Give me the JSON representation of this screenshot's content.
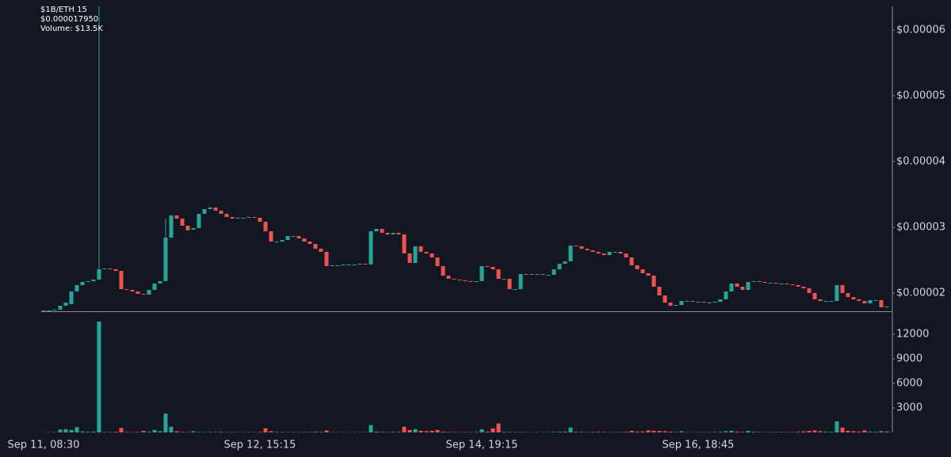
{
  "header": {
    "symbol": "$1B/ETH 15",
    "price": "$0.000017950",
    "volume": "Volume: $13.5K"
  },
  "chart_data": {
    "type": "candlestick",
    "up_color": "#26a69a",
    "down_color": "#ef5350",
    "categories": [
      "Sep 11, 08:30",
      null,
      null,
      null,
      null,
      null,
      null,
      null,
      null,
      null,
      null,
      null,
      null,
      null,
      null,
      null,
      null,
      null,
      null,
      null,
      null,
      null,
      null,
      null,
      null,
      null,
      null,
      null,
      null,
      null,
      null,
      null,
      null,
      null,
      null,
      null,
      null,
      null,
      null,
      "Sep 12, 15:15",
      null,
      null,
      null,
      null,
      null,
      null,
      null,
      null,
      null,
      null,
      null,
      null,
      null,
      null,
      null,
      null,
      null,
      null,
      null,
      null,
      null,
      null,
      null,
      null,
      null,
      null,
      null,
      null,
      null,
      null,
      null,
      null,
      null,
      null,
      null,
      null,
      null,
      null,
      null,
      "Sep 14, 19:15",
      null,
      null,
      null,
      null,
      null,
      null,
      null,
      null,
      null,
      null,
      null,
      null,
      null,
      null,
      null,
      null,
      null,
      null,
      null,
      null,
      null,
      null,
      null,
      null,
      null,
      null,
      null,
      null,
      null,
      null,
      null,
      null,
      null,
      null,
      null,
      null,
      null,
      null,
      "Sep 16, 18:45",
      null,
      null,
      null,
      null,
      null,
      null,
      null,
      null,
      null,
      null,
      null,
      null,
      null,
      null,
      null,
      null,
      null,
      null,
      null,
      null,
      null,
      null,
      null,
      null,
      null,
      null,
      null,
      null,
      null,
      null,
      null,
      null,
      null,
      null
    ],
    "open": [
      1.735e-05,
      1.735e-05,
      1.735e-05,
      1.747e-05,
      1.807e-05,
      1.831e-05,
      2.024e-05,
      2.12e-05,
      2.169e-05,
      2.181e-05,
      2.205e-05,
      2.361e-05,
      2.373e-05,
      2.361e-05,
      2.337e-05,
      2.06e-05,
      2.048e-05,
      2.024e-05,
      1.988e-05,
      1.976e-05,
      2.048e-05,
      2.145e-05,
      2.181e-05,
      2.843e-05,
      3.181e-05,
      3.133e-05,
      3.024e-05,
      2.964e-05,
      2.988e-05,
      3.205e-05,
      3.277e-05,
      3.301e-05,
      3.253e-05,
      3.205e-05,
      3.157e-05,
      3.133e-05,
      3.145e-05,
      3.145e-05,
      3.157e-05,
      3.145e-05,
      3.084e-05,
      2.94e-05,
      2.783e-05,
      2.783e-05,
      2.807e-05,
      2.867e-05,
      2.867e-05,
      2.831e-05,
      2.783e-05,
      2.747e-05,
      2.675e-05,
      2.627e-05,
      2.41e-05,
      2.422e-05,
      2.422e-05,
      2.434e-05,
      2.434e-05,
      2.434e-05,
      2.446e-05,
      2.434e-05,
      2.94e-05,
      2.976e-05,
      2.916e-05,
      2.892e-05,
      2.916e-05,
      2.892e-05,
      2.602e-05,
      2.458e-05,
      2.711e-05,
      2.627e-05,
      2.602e-05,
      2.542e-05,
      2.41e-05,
      2.265e-05,
      2.217e-05,
      2.205e-05,
      2.193e-05,
      2.181e-05,
      2.169e-05,
      2.181e-05,
      2.41e-05,
      2.398e-05,
      2.361e-05,
      2.217e-05,
      2.217e-05,
      2.06e-05,
      2.06e-05,
      2.289e-05,
      2.289e-05,
      2.277e-05,
      2.289e-05,
      2.277e-05,
      2.277e-05,
      2.361e-05,
      2.446e-05,
      2.482e-05,
      2.723e-05,
      2.711e-05,
      2.675e-05,
      2.651e-05,
      2.627e-05,
      2.602e-05,
      2.578e-05,
      2.627e-05,
      2.627e-05,
      2.602e-05,
      2.542e-05,
      2.422e-05,
      2.361e-05,
      2.301e-05,
      2.265e-05,
      2.096e-05,
      1.964e-05,
      1.855e-05,
      1.807e-05,
      1.819e-05,
      1.88e-05,
      1.88e-05,
      1.867e-05,
      1.867e-05,
      1.855e-05,
      1.855e-05,
      1.867e-05,
      1.904e-05,
      2.024e-05,
      2.145e-05,
      2.096e-05,
      2.048e-05,
      2.169e-05,
      2.181e-05,
      2.169e-05,
      2.157e-05,
      2.157e-05,
      2.145e-05,
      2.145e-05,
      2.133e-05,
      2.12e-05,
      2.096e-05,
      2.072e-05,
      2e-05,
      1.904e-05,
      1.88e-05,
      1.88e-05,
      1.88e-05,
      2.12e-05,
      2e-05,
      1.94e-05,
      1.904e-05,
      1.88e-05,
      1.843e-05,
      1.892e-05,
      1.892e-05,
      1.783e-05
    ],
    "high": [
      1.735e-05,
      1.735e-05,
      1.747e-05,
      1.807e-05,
      1.855e-05,
      2.024e-05,
      2.12e-05,
      2.169e-05,
      2.181e-05,
      2.205e-05,
      6.361e-05,
      2.373e-05,
      2.373e-05,
      2.361e-05,
      2.337e-05,
      2.06e-05,
      2.048e-05,
      2.024e-05,
      1.988e-05,
      2.048e-05,
      2.145e-05,
      2.181e-05,
      3.133e-05,
      3.181e-05,
      3.181e-05,
      3.133e-05,
      3.024e-05,
      2.988e-05,
      3.205e-05,
      3.277e-05,
      3.301e-05,
      3.301e-05,
      3.253e-05,
      3.205e-05,
      3.157e-05,
      3.145e-05,
      3.145e-05,
      3.157e-05,
      3.157e-05,
      3.145e-05,
      3.084e-05,
      2.94e-05,
      2.783e-05,
      2.807e-05,
      2.867e-05,
      2.867e-05,
      2.867e-05,
      2.831e-05,
      2.783e-05,
      2.747e-05,
      2.675e-05,
      2.627e-05,
      2.422e-05,
      2.422e-05,
      2.434e-05,
      2.434e-05,
      2.434e-05,
      2.446e-05,
      2.446e-05,
      2.94e-05,
      2.976e-05,
      2.976e-05,
      2.916e-05,
      2.916e-05,
      2.916e-05,
      2.892e-05,
      2.602e-05,
      2.711e-05,
      2.711e-05,
      2.627e-05,
      2.602e-05,
      2.542e-05,
      2.41e-05,
      2.265e-05,
      2.217e-05,
      2.205e-05,
      2.193e-05,
      2.181e-05,
      2.181e-05,
      2.41e-05,
      2.41e-05,
      2.398e-05,
      2.361e-05,
      2.217e-05,
      2.217e-05,
      2.06e-05,
      2.289e-05,
      2.289e-05,
      2.289e-05,
      2.289e-05,
      2.289e-05,
      2.277e-05,
      2.361e-05,
      2.446e-05,
      2.482e-05,
      2.723e-05,
      2.723e-05,
      2.711e-05,
      2.675e-05,
      2.651e-05,
      2.627e-05,
      2.602e-05,
      2.627e-05,
      2.627e-05,
      2.627e-05,
      2.602e-05,
      2.542e-05,
      2.422e-05,
      2.361e-05,
      2.301e-05,
      2.265e-05,
      2.096e-05,
      1.964e-05,
      1.855e-05,
      1.819e-05,
      1.88e-05,
      1.88e-05,
      1.88e-05,
      1.867e-05,
      1.867e-05,
      1.855e-05,
      1.867e-05,
      1.904e-05,
      2.024e-05,
      2.145e-05,
      2.145e-05,
      2.096e-05,
      2.169e-05,
      2.181e-05,
      2.181e-05,
      2.169e-05,
      2.157e-05,
      2.157e-05,
      2.145e-05,
      2.145e-05,
      2.133e-05,
      2.12e-05,
      2.096e-05,
      2.072e-05,
      2e-05,
      1.904e-05,
      1.88e-05,
      1.88e-05,
      2.12e-05,
      2.12e-05,
      2e-05,
      1.94e-05,
      1.904e-05,
      1.88e-05,
      1.892e-05,
      1.892e-05,
      1.892e-05,
      1.795e-05
    ],
    "low": [
      1.735e-05,
      1.735e-05,
      1.735e-05,
      1.747e-05,
      1.807e-05,
      1.831e-05,
      2.024e-05,
      2.12e-05,
      2.169e-05,
      2.181e-05,
      2.205e-05,
      2.361e-05,
      2.361e-05,
      2.337e-05,
      2.06e-05,
      2.048e-05,
      2.024e-05,
      1.988e-05,
      1.976e-05,
      1.976e-05,
      2.048e-05,
      2.145e-05,
      2.181e-05,
      2.843e-05,
      3.133e-05,
      3.024e-05,
      2.952e-05,
      2.964e-05,
      2.988e-05,
      3.205e-05,
      3.277e-05,
      3.253e-05,
      3.205e-05,
      3.157e-05,
      3.133e-05,
      3.133e-05,
      3.145e-05,
      3.145e-05,
      3.145e-05,
      3.084e-05,
      2.94e-05,
      2.783e-05,
      2.783e-05,
      2.783e-05,
      2.807e-05,
      2.867e-05,
      2.831e-05,
      2.783e-05,
      2.747e-05,
      2.675e-05,
      2.627e-05,
      2.41e-05,
      2.41e-05,
      2.422e-05,
      2.422e-05,
      2.434e-05,
      2.434e-05,
      2.434e-05,
      2.434e-05,
      2.434e-05,
      2.94e-05,
      2.916e-05,
      2.892e-05,
      2.892e-05,
      2.892e-05,
      2.602e-05,
      2.458e-05,
      2.458e-05,
      2.627e-05,
      2.602e-05,
      2.542e-05,
      2.41e-05,
      2.265e-05,
      2.217e-05,
      2.205e-05,
      2.193e-05,
      2.181e-05,
      2.169e-05,
      2.169e-05,
      2.181e-05,
      2.398e-05,
      2.361e-05,
      2.217e-05,
      2.217e-05,
      2.06e-05,
      2.06e-05,
      2.06e-05,
      2.289e-05,
      2.277e-05,
      2.277e-05,
      2.277e-05,
      2.277e-05,
      2.277e-05,
      2.361e-05,
      2.446e-05,
      2.482e-05,
      2.711e-05,
      2.675e-05,
      2.651e-05,
      2.627e-05,
      2.602e-05,
      2.578e-05,
      2.578e-05,
      2.627e-05,
      2.602e-05,
      2.542e-05,
      2.422e-05,
      2.361e-05,
      2.301e-05,
      2.265e-05,
      2.096e-05,
      1.964e-05,
      1.855e-05,
      1.807e-05,
      1.807e-05,
      1.819e-05,
      1.88e-05,
      1.867e-05,
      1.867e-05,
      1.855e-05,
      1.855e-05,
      1.855e-05,
      1.867e-05,
      1.904e-05,
      2.024e-05,
      2.096e-05,
      2.048e-05,
      2.048e-05,
      2.169e-05,
      2.169e-05,
      2.157e-05,
      2.157e-05,
      2.145e-05,
      2.145e-05,
      2.133e-05,
      2.12e-05,
      2.096e-05,
      2.072e-05,
      2e-05,
      1.904e-05,
      1.88e-05,
      1.88e-05,
      1.88e-05,
      1.88e-05,
      2e-05,
      1.94e-05,
      1.904e-05,
      1.88e-05,
      1.843e-05,
      1.843e-05,
      1.892e-05,
      1.783e-05,
      1.783e-05
    ],
    "close": [
      1.735e-05,
      1.735e-05,
      1.747e-05,
      1.807e-05,
      1.855e-05,
      2.024e-05,
      2.12e-05,
      2.169e-05,
      2.181e-05,
      2.205e-05,
      2.361e-05,
      2.373e-05,
      2.361e-05,
      2.337e-05,
      2.06e-05,
      2.048e-05,
      2.024e-05,
      1.988e-05,
      1.976e-05,
      2.048e-05,
      2.145e-05,
      2.181e-05,
      2.843e-05,
      3.181e-05,
      3.133e-05,
      3.024e-05,
      2.952e-05,
      2.988e-05,
      3.205e-05,
      3.277e-05,
      3.301e-05,
      3.253e-05,
      3.205e-05,
      3.157e-05,
      3.133e-05,
      3.145e-05,
      3.145e-05,
      3.157e-05,
      3.145e-05,
      3.084e-05,
      2.94e-05,
      2.783e-05,
      2.783e-05,
      2.807e-05,
      2.867e-05,
      2.867e-05,
      2.831e-05,
      2.783e-05,
      2.747e-05,
      2.675e-05,
      2.627e-05,
      2.41e-05,
      2.422e-05,
      2.422e-05,
      2.434e-05,
      2.434e-05,
      2.434e-05,
      2.446e-05,
      2.434e-05,
      2.94e-05,
      2.976e-05,
      2.916e-05,
      2.892e-05,
      2.916e-05,
      2.892e-05,
      2.602e-05,
      2.458e-05,
      2.711e-05,
      2.627e-05,
      2.602e-05,
      2.542e-05,
      2.41e-05,
      2.265e-05,
      2.217e-05,
      2.205e-05,
      2.193e-05,
      2.181e-05,
      2.169e-05,
      2.181e-05,
      2.41e-05,
      2.398e-05,
      2.361e-05,
      2.217e-05,
      2.217e-05,
      2.06e-05,
      2.06e-05,
      2.289e-05,
      2.289e-05,
      2.277e-05,
      2.289e-05,
      2.277e-05,
      2.277e-05,
      2.361e-05,
      2.446e-05,
      2.482e-05,
      2.723e-05,
      2.711e-05,
      2.675e-05,
      2.651e-05,
      2.627e-05,
      2.602e-05,
      2.578e-05,
      2.627e-05,
      2.627e-05,
      2.602e-05,
      2.542e-05,
      2.422e-05,
      2.361e-05,
      2.301e-05,
      2.265e-05,
      2.096e-05,
      1.964e-05,
      1.855e-05,
      1.807e-05,
      1.819e-05,
      1.88e-05,
      1.88e-05,
      1.867e-05,
      1.867e-05,
      1.855e-05,
      1.855e-05,
      1.867e-05,
      1.904e-05,
      2.024e-05,
      2.145e-05,
      2.096e-05,
      2.048e-05,
      2.169e-05,
      2.181e-05,
      2.169e-05,
      2.157e-05,
      2.157e-05,
      2.145e-05,
      2.145e-05,
      2.133e-05,
      2.12e-05,
      2.096e-05,
      2.072e-05,
      2e-05,
      1.904e-05,
      1.88e-05,
      1.88e-05,
      1.88e-05,
      2.12e-05,
      2e-05,
      1.94e-05,
      1.904e-05,
      1.88e-05,
      1.843e-05,
      1.892e-05,
      1.892e-05,
      1.783e-05,
      1.795e-05
    ],
    "volume": [
      20,
      20,
      40,
      350,
      400,
      300,
      650,
      120,
      80,
      100,
      13550,
      60,
      50,
      80,
      550,
      60,
      40,
      50,
      200,
      80,
      300,
      150,
      2300,
      700,
      150,
      60,
      50,
      150,
      60,
      50,
      60,
      50,
      80,
      40,
      50,
      40,
      30,
      40,
      30,
      60,
      500,
      150,
      60,
      50,
      40,
      50,
      40,
      60,
      50,
      80,
      60,
      250,
      40,
      30,
      40,
      30,
      40,
      30,
      40,
      900,
      100,
      60,
      50,
      80,
      60,
      700,
      300,
      400,
      200,
      150,
      200,
      300,
      100,
      60,
      50,
      40,
      50,
      40,
      60,
      400,
      100,
      500,
      1100,
      80,
      60,
      50,
      60,
      40,
      30,
      40,
      30,
      40,
      60,
      80,
      100,
      600,
      80,
      60,
      50,
      60,
      80,
      60,
      50,
      40,
      60,
      80,
      200,
      100,
      120,
      250,
      200,
      180,
      150,
      100,
      60,
      150,
      40,
      30,
      40,
      50,
      40,
      60,
      80,
      150,
      200,
      100,
      60,
      200,
      80,
      50,
      40,
      50,
      40,
      60,
      50,
      40,
      80,
      120,
      200,
      250,
      150,
      100,
      80,
      1350,
      600,
      200,
      150,
      100,
      250,
      100,
      80,
      150,
      120
    ],
    "ylim": [
      1.723e-05,
      6.361e-05
    ],
    "yticks": [
      {
        "value": 2e-05,
        "label": "$0.00002"
      },
      {
        "value": 3e-05,
        "label": "$0.00003"
      },
      {
        "value": 4e-05,
        "label": "$0.00004"
      },
      {
        "value": 5e-05,
        "label": "$0.00005"
      },
      {
        "value": 6e-05,
        "label": "$0.00006"
      }
    ],
    "volume_ylim": [
      0,
      14130
    ],
    "volume_yticks": [
      3000,
      6000,
      9000,
      12000
    ]
  }
}
